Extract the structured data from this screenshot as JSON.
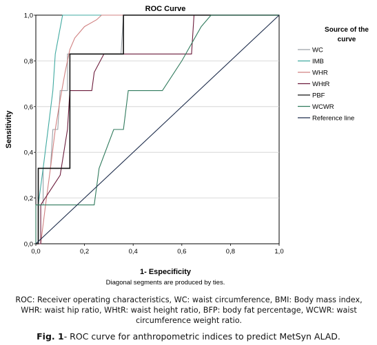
{
  "chart_data": {
    "type": "line",
    "title": "ROC Curve",
    "xlabel": "1- Especificity",
    "ylabel": "Sensitivity",
    "note": "Diagonal segments are produced by ties.",
    "xlim": [
      0,
      1
    ],
    "ylim": [
      0,
      1
    ],
    "xticks": [
      "0,0",
      "0,2",
      "0,4",
      "0,6",
      "0,8",
      "1,0"
    ],
    "yticks": [
      "0,0",
      "0,2",
      "0,4",
      "0,6",
      "0,8",
      "1,0"
    ],
    "grid": "horizontal",
    "legend_title": "Source of the curve",
    "legend_position": "right",
    "series": [
      {
        "name": "WC",
        "color": "#9aa0a6",
        "x": [
          0,
          0.01,
          0.01,
          0.03,
          0.03,
          0.06,
          0.07,
          0.09,
          0.1,
          0.1,
          0.13,
          0.13,
          0.15,
          0.15,
          0.35,
          0.36,
          0.37,
          0.53,
          0.55,
          0.62,
          1.0
        ],
        "y": [
          0,
          0,
          0.17,
          0.17,
          0.33,
          0.33,
          0.5,
          0.5,
          0.67,
          0.67,
          0.67,
          0.83,
          0.83,
          0.83,
          0.83,
          1.0,
          1.0,
          1.0,
          1.0,
          1.0,
          1.0
        ]
      },
      {
        "name": "IMB",
        "color": "#3fa9a0",
        "x": [
          0,
          0.01,
          0.01,
          0.03,
          0.05,
          0.07,
          0.08,
          0.11,
          0.12,
          1.0
        ],
        "y": [
          0,
          0,
          0.17,
          0.33,
          0.5,
          0.67,
          0.83,
          1.0,
          1.0,
          1.0
        ]
      },
      {
        "name": "WHR",
        "color": "#d08080",
        "x": [
          0,
          0.02,
          0.04,
          0.06,
          0.08,
          0.1,
          0.12,
          0.14,
          0.16,
          0.2,
          0.25,
          0.27,
          0.3,
          0.33,
          0.4,
          0.48,
          1.0
        ],
        "y": [
          0,
          0,
          0.17,
          0.33,
          0.5,
          0.63,
          0.75,
          0.85,
          0.9,
          0.95,
          0.98,
          1.0,
          1.0,
          1.0,
          1.0,
          1.0,
          1.0
        ]
      },
      {
        "name": "WHtR",
        "color": "#6b1a3a",
        "x": [
          0,
          0.02,
          0.02,
          0.1,
          0.13,
          0.14,
          0.16,
          0.16,
          0.2,
          0.22,
          0.23,
          0.24,
          0.28,
          0.29,
          0.37,
          0.37,
          0.4,
          0.5,
          0.6,
          0.64,
          0.65,
          1.0
        ],
        "y": [
          0,
          0,
          0.17,
          0.3,
          0.5,
          0.67,
          0.67,
          0.67,
          0.67,
          0.67,
          0.67,
          0.75,
          0.83,
          0.83,
          0.83,
          0.83,
          0.83,
          0.83,
          0.83,
          0.83,
          1.0,
          1.0
        ]
      },
      {
        "name": "PBF",
        "color": "#111111",
        "x": [
          0,
          0.01,
          0.01,
          0.02,
          0.02,
          0.14,
          0.14,
          0.36,
          0.36,
          0.37,
          1.0
        ],
        "y": [
          0,
          0,
          0.33,
          0.33,
          0.33,
          0.33,
          0.83,
          0.83,
          1.0,
          1.0,
          1.0
        ]
      },
      {
        "name": "WCWR",
        "color": "#2f7a5c",
        "x": [
          0,
          0.0,
          0.01,
          0.24,
          0.26,
          0.26,
          0.32,
          0.36,
          0.38,
          0.52,
          0.6,
          0.68,
          0.72,
          1.0
        ],
        "y": [
          0,
          0.17,
          0.17,
          0.17,
          0.33,
          0.33,
          0.5,
          0.5,
          0.67,
          0.67,
          0.8,
          0.95,
          1.0,
          1.0
        ]
      },
      {
        "name": "Reference line",
        "color": "#1c2b4a",
        "x": [
          0,
          1
        ],
        "y": [
          0,
          1
        ]
      }
    ]
  },
  "caption": "ROC: Receiver operating characteristics, WC:  waist circumference, BMI: Body mass index, WHR: waist hip ratio, WHtR: waist height ratio, BFP: body fat percentage, WCWR: waist circumference weight ratio.",
  "figure": {
    "label": "Fig. 1",
    "text": "- ROC curve for anthropometric indices to predict MetSyn ALAD."
  }
}
